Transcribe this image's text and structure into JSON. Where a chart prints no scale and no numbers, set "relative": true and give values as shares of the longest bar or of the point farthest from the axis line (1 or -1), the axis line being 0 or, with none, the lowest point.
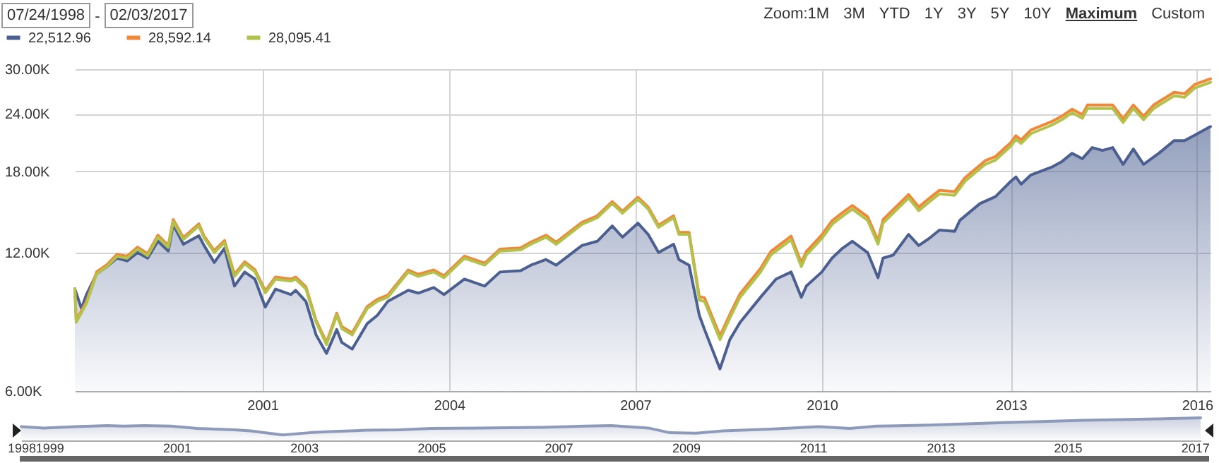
{
  "chart_data": [
    {
      "type": "line",
      "log": "y",
      "grid": true,
      "legend": "top left",
      "annotations": [
        "07/24/1998",
        "-",
        "02/03/2017",
        "Zoom:",
        "1M",
        "3M",
        "YTD",
        "1Y",
        "3Y",
        "5Y",
        "10Y",
        "Maximum",
        "Custom"
      ],
      "xlim": [
        "1998-07-24",
        "2017-02-03"
      ],
      "xticks": [
        {
          "value": "2001-08-15",
          "label": "2001"
        },
        {
          "value": "2004-09-01",
          "label": "2004"
        },
        {
          "value": "2007-09-15",
          "label": "2007"
        },
        {
          "value": "2010-10-01",
          "label": "2010"
        },
        {
          "value": "2013-11-01",
          "label": "2013"
        },
        {
          "value": "2016-11-15",
          "label": "2016"
        }
      ],
      "ylim": [
        6000,
        30000
      ],
      "yticks": [
        {
          "value": 6000,
          "label": "6.00K"
        },
        {
          "value": 12000,
          "label": "12.00K"
        },
        {
          "value": 18000,
          "label": "18.00K"
        },
        {
          "value": 24000,
          "label": "24.00K"
        },
        {
          "value": 30000,
          "label": "30.00K"
        }
      ],
      "x": [
        "1998-07-24",
        "1998-08",
        "1998-10",
        "1998-12",
        "1999-02",
        "1999-04",
        "1999-06",
        "1999-08",
        "1999-10",
        "1999-12",
        "2000-02",
        "2000-03",
        "2000-05",
        "2000-08",
        "2000-09",
        "2000-11",
        "2001-01",
        "2001-03",
        "2001-05",
        "2001-07",
        "2001-09",
        "2001-11",
        "2002-02",
        "2002-03",
        "2002-05",
        "2002-07",
        "2002-09",
        "2002-11",
        "2002-12",
        "2003-02",
        "2003-05",
        "2003-07",
        "2003-09",
        "2004-01",
        "2004-03",
        "2004-06",
        "2004-08",
        "2004-12",
        "2005-04",
        "2005-07",
        "2005-11",
        "2006-01",
        "2006-04",
        "2006-06",
        "2006-11",
        "2007-02",
        "2007-05",
        "2007-07",
        "2007-10",
        "2007-12",
        "2008-02",
        "2008-05",
        "2008-06",
        "2008-08",
        "2008-10",
        "2008-11",
        "2009-02",
        "2009-04",
        "2009-06",
        "2009-10",
        "2009-12",
        "2010-04",
        "2010-06",
        "2010-07",
        "2010-10",
        "2010-12",
        "2011-02",
        "2011-04",
        "2011-07",
        "2011-09",
        "2011-10",
        "2012-03",
        "2012-05",
        "2012-07",
        "2012-09",
        "2012-12",
        "2013-02",
        "2013-06",
        "2013-08",
        "2013-11",
        "2013-12",
        "2014-01",
        "2014-03",
        "2014-07",
        "2014-09",
        "2014-11",
        "2015-01",
        "2015-02",
        "2015-07",
        "2015-09",
        "2015-11",
        "2016-01",
        "2016-03",
        "2016-07",
        "2016-09",
        "2016-11",
        "2017-02-03"
      ],
      "series": [
        {
          "name": "22,512.96",
          "color": "#4b5f91",
          "type": "area",
          "x": [
            "1998-07-24",
            "1998-09",
            "1998-10",
            "1998-12",
            "1999-02",
            "1999-04",
            "1999-06",
            "1999-08",
            "1999-10",
            "1999-12",
            "2000-02",
            "2000-03",
            "2000-05",
            "2000-08",
            "2000-09",
            "2000-11",
            "2001-01",
            "2001-03",
            "2001-05",
            "2001-07",
            "2001-09",
            "2001-11",
            "2002-02",
            "2002-03",
            "2002-05",
            "2002-07",
            "2002-09",
            "2002-11",
            "2002-12",
            "2003-02",
            "2003-05",
            "2003-07",
            "2003-09",
            "2004-01",
            "2004-03",
            "2004-06",
            "2004-08",
            "2004-12",
            "2005-04",
            "2005-07",
            "2005-11",
            "2006-01",
            "2006-04",
            "2006-06",
            "2006-11",
            "2007-02",
            "2007-05",
            "2007-07",
            "2007-10",
            "2007-12",
            "2008-02",
            "2008-05",
            "2008-06",
            "2008-08",
            "2008-10",
            "2008-11",
            "2009-02",
            "2009-04",
            "2009-06",
            "2009-10",
            "2010-01",
            "2010-04",
            "2010-06",
            "2010-07",
            "2010-10",
            "2010-12",
            "2011-02",
            "2011-04",
            "2011-07",
            "2011-09",
            "2011-10",
            "2011-12",
            "2012-03",
            "2012-05",
            "2012-07",
            "2012-09",
            "2012-12",
            "2013-01",
            "2013-05",
            "2013-08",
            "2013-11",
            "2013-12",
            "2014-01",
            "2014-03",
            "2014-07",
            "2014-09",
            "2014-11",
            "2015-01",
            "2015-03",
            "2015-05",
            "2015-07",
            "2015-09",
            "2015-11",
            "2016-01",
            "2016-04",
            "2016-07",
            "2016-09",
            "2016-11",
            "2017-02-03"
          ],
          "values": [
            10000,
            9060,
            9720,
            10780,
            11180,
            11660,
            11500,
            11990,
            11660,
            12690,
            12080,
            13800,
            12500,
            13040,
            12420,
            11410,
            12250,
            10140,
            10880,
            10500,
            9130,
            9990,
            9720,
            9930,
            9390,
            7940,
            7240,
            8160,
            7650,
            7400,
            8400,
            8760,
            9390,
            9930,
            9790,
            10070,
            9720,
            10500,
            10140,
            10880,
            10950,
            11260,
            11580,
            11260,
            12420,
            12690,
            13700,
            12950,
            13890,
            13130,
            11990,
            12500,
            11580,
            11260,
            8760,
            8160,
            6700,
            7760,
            8460,
            9590,
            10500,
            10880,
            9590,
            10140,
            10880,
            11660,
            12250,
            12690,
            11990,
            10570,
            11660,
            11840,
            13130,
            12420,
            12860,
            13420,
            13330,
            14090,
            15320,
            15860,
            17130,
            17500,
            16880,
            17680,
            18370,
            18900,
            19700,
            19170,
            20270,
            19980,
            20270,
            18640,
            20130,
            18640,
            19700,
            20990,
            20990,
            21560,
            22513
          ]
        },
        {
          "name": "28,592.14",
          "color": "#f0883a",
          "values": [
            10000,
            8540,
            9390,
            10890,
            11290,
            11880,
            11780,
            12320,
            11920,
            13080,
            12420,
            14140,
            12930,
            13840,
            13030,
            12110,
            12730,
            10750,
            11450,
            11010,
            9900,
            10610,
            10500,
            10610,
            10100,
            8540,
            7650,
            8850,
            8280,
            8020,
            9150,
            9490,
            9690,
            10990,
            10750,
            10990,
            10680,
            11780,
            11370,
            12200,
            12270,
            12630,
            13080,
            12630,
            13940,
            14410,
            15470,
            14750,
            15810,
            15050,
            13740,
            14410,
            13260,
            13260,
            9620,
            9560,
            7900,
            8800,
            9760,
            11080,
            12050,
            13010,
            11380,
            12050,
            13090,
            14050,
            14640,
            15170,
            14340,
            12730,
            14140,
            16030,
            15060,
            15710,
            16370,
            16260,
            17440,
            18980,
            19380,
            20780,
            21510,
            21060,
            22130,
            23070,
            23720,
            24560,
            23890,
            25080,
            25080,
            23390,
            25080,
            23720,
            25080,
            26720,
            26530,
            27790,
            28592
          ]
        },
        {
          "name": "28,095.41",
          "color": "#b3c24a",
          "values": [
            10000,
            8460,
            9300,
            10780,
            11180,
            11760,
            11660,
            12200,
            11800,
            12950,
            12300,
            14000,
            12800,
            13700,
            12900,
            11990,
            12600,
            10640,
            11340,
            10900,
            9800,
            10500,
            10400,
            10500,
            10000,
            8460,
            7570,
            8760,
            8200,
            7940,
            9060,
            9400,
            9590,
            10880,
            10640,
            10880,
            10570,
            11660,
            11260,
            12080,
            12150,
            12500,
            12950,
            12500,
            13800,
            14270,
            15320,
            14600,
            15650,
            14900,
            13600,
            14270,
            13130,
            13130,
            9450,
            9390,
            7760,
            8640,
            9590,
            10880,
            11840,
            12780,
            11180,
            11840,
            12860,
            13800,
            14380,
            14900,
            14090,
            12500,
            13890,
            15750,
            14790,
            15430,
            16080,
            15970,
            17130,
            18640,
            19040,
            20410,
            21130,
            20690,
            21740,
            22660,
            23300,
            24130,
            23470,
            24640,
            24640,
            22980,
            24640,
            23300,
            24640,
            26250,
            26060,
            27300,
            28095
          ]
        }
      ]
    },
    {
      "type": "area",
      "relative": true,
      "tick_labels": "x",
      "xlim": [
        "1998-07-24",
        "2017-02-03"
      ],
      "xticks": [
        {
          "value": "1998-07-24",
          "label": "1998"
        },
        {
          "value": "1999-01-01",
          "label": "1999"
        },
        {
          "value": "2001-01-01",
          "label": "2001"
        },
        {
          "value": "2003-01-01",
          "label": "2003"
        },
        {
          "value": "2005-01-01",
          "label": "2005"
        },
        {
          "value": "2007-01-01",
          "label": "2007"
        },
        {
          "value": "2009-01-01",
          "label": "2009"
        },
        {
          "value": "2011-01-01",
          "label": "2011"
        },
        {
          "value": "2013-01-01",
          "label": "2013"
        },
        {
          "value": "2015-01-01",
          "label": "2015"
        },
        {
          "value": "2017-01-01",
          "label": "2017"
        }
      ],
      "x": [
        "1998-07-24",
        "1998-12",
        "1999-06",
        "1999-12",
        "2000-03",
        "2000-07",
        "2000-12",
        "2001-05",
        "2001-12",
        "2002-03",
        "2002-09",
        "2003-02",
        "2003-06",
        "2004-01",
        "2004-07",
        "2005-01",
        "2005-10",
        "2006-10",
        "2007-06",
        "2007-11",
        "2008-06",
        "2008-10",
        "2009-03",
        "2009-08",
        "2010-05",
        "2011-02",
        "2011-08",
        "2012-01",
        "2012-11",
        "2014-01",
        "2015-04",
        "2015-11",
        "2016-06",
        "2017-02-03"
      ],
      "series": [
        {
          "color": "#8e9aba",
          "values": [
            0.61,
            0.55,
            0.61,
            0.66,
            0.63,
            0.66,
            0.63,
            0.53,
            0.47,
            0.42,
            0.24,
            0.34,
            0.39,
            0.45,
            0.47,
            0.53,
            0.55,
            0.58,
            0.63,
            0.66,
            0.55,
            0.34,
            0.32,
            0.42,
            0.5,
            0.61,
            0.53,
            0.63,
            0.68,
            0.79,
            0.89,
            0.92,
            0.95,
            1
          ]
        }
      ]
    }
  ]
}
